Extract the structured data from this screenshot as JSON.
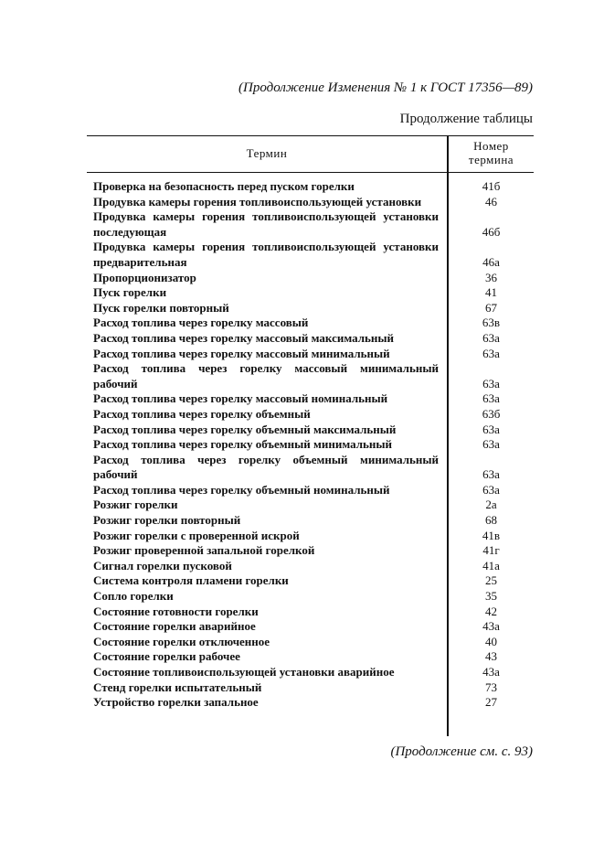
{
  "header": "(Продолжение Изменения № 1 к ГОСТ 17356—89)",
  "table_caption": "Продолжение таблицы",
  "table": {
    "col_term": "Термин",
    "col_number_line1": "Номер",
    "col_number_line2": "термина",
    "rows": [
      {
        "term": [
          "Проверка на безопасность перед пуском горелки"
        ],
        "number": "41б"
      },
      {
        "term": [
          "Продувка камеры горения топливоиспользующей установки"
        ],
        "number": "46"
      },
      {
        "term": [
          "Продувка камеры горения топливоиспользующей установки",
          "последующая"
        ],
        "number": "46б"
      },
      {
        "term": [
          "Продувка камеры горения топливоиспользующей установки",
          "предварительная"
        ],
        "number": "46а"
      },
      {
        "term": [
          "Пропорционизатор"
        ],
        "number": "36"
      },
      {
        "term": [
          "Пуск горелки"
        ],
        "number": "41"
      },
      {
        "term": [
          "Пуск горелки повторный"
        ],
        "number": "67"
      },
      {
        "term": [
          "Расход топлива через горелку массовый"
        ],
        "number": "63в"
      },
      {
        "term": [
          "Расход топлива через горелку массовый максимальный"
        ],
        "number": "63а"
      },
      {
        "term": [
          "Расход топлива через горелку массовый минимальный"
        ],
        "number": "63а"
      },
      {
        "term": [
          "Расход топлива через горелку массовый минимальный",
          "рабочий"
        ],
        "number": "63а"
      },
      {
        "term": [
          "Расход топлива через горелку массовый номинальный"
        ],
        "number": "63а"
      },
      {
        "term": [
          "Расход топлива через горелку объемный"
        ],
        "number": "63б"
      },
      {
        "term": [
          "Расход топлива через горелку объемный максимальный"
        ],
        "number": "63а"
      },
      {
        "term": [
          "Расход топлива через горелку объемный минимальный"
        ],
        "number": "63а"
      },
      {
        "term": [
          "Расход топлива через горелку объемный минимальный",
          "рабочий"
        ],
        "number": "63а"
      },
      {
        "term": [
          "Расход топлива через горелку объемный номинальный"
        ],
        "number": "63а"
      },
      {
        "term": [
          "Розжиг горелки"
        ],
        "number": "2а"
      },
      {
        "term": [
          "Розжиг горелки повторный"
        ],
        "number": "68"
      },
      {
        "term": [
          "Розжиг горелки с проверенной искрой"
        ],
        "number": "41в"
      },
      {
        "term": [
          "Розжиг проверенной запальной горелкой"
        ],
        "number": "41г"
      },
      {
        "term": [
          "Сигнал горелки пусковой"
        ],
        "number": "41а"
      },
      {
        "term": [
          "Система контроля пламени горелки"
        ],
        "number": "25"
      },
      {
        "term": [
          "Сопло горелки"
        ],
        "number": "35"
      },
      {
        "term": [
          "Состояние готовности горелки"
        ],
        "number": "42"
      },
      {
        "term": [
          "Состояние горелки аварийное"
        ],
        "number": "43а"
      },
      {
        "term": [
          "Состояние горелки отключенное"
        ],
        "number": "40"
      },
      {
        "term": [
          "Состояние горелки рабочее"
        ],
        "number": "43"
      },
      {
        "term": [
          "Состояние топливоиспользующей установки аварийное"
        ],
        "number": "43а"
      },
      {
        "term": [
          "Стенд горелки испытательный"
        ],
        "number": "73"
      },
      {
        "term": [
          "Устройство горелки запальное"
        ],
        "number": "27"
      }
    ]
  },
  "footer": "(Продолжение см. с. 93)"
}
